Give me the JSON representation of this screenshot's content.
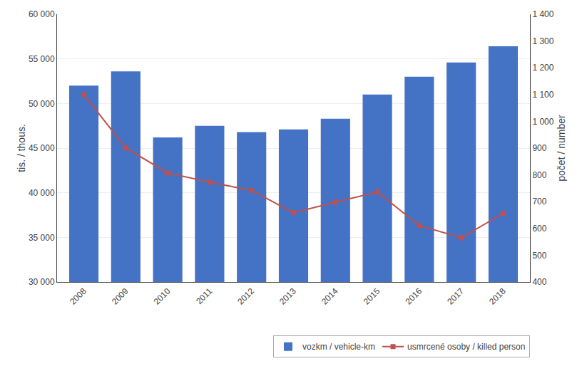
{
  "chart_data": {
    "type": "bar",
    "categories": [
      "2008",
      "2009",
      "2010",
      "2011",
      "2012",
      "2013",
      "2014",
      "2015",
      "2016",
      "2017",
      "2018"
    ],
    "series": [
      {
        "name": "vozkm / vehicle-km",
        "type": "bar",
        "color": "#4472C4",
        "values": [
          52000,
          53600,
          46200,
          47500,
          46800,
          47100,
          48300,
          51000,
          53000,
          54600,
          56400
        ]
      },
      {
        "name": "usmrcené osoby / killed person",
        "type": "line",
        "color": "#C0504D",
        "marker": "square",
        "axis": "y2",
        "values": [
          1100,
          901,
          807,
          773,
          742,
          659,
          698,
          736,
          611,
          565,
          656
        ]
      }
    ],
    "ylabel": "tis. / thous.",
    "y2label": "počet / number",
    "ylim": [
      30000,
      60000
    ],
    "yticks": [
      {
        "value": 30000,
        "label": "30 000"
      },
      {
        "value": 35000,
        "label": "35 000"
      },
      {
        "value": 40000,
        "label": "40 000"
      },
      {
        "value": 45000,
        "label": "45 000"
      },
      {
        "value": 50000,
        "label": "50 000"
      },
      {
        "value": 55000,
        "label": "55 000"
      },
      {
        "value": 60000,
        "label": "60 000"
      }
    ],
    "y2lim": [
      400,
      1400
    ],
    "y2ticks": [
      400,
      500,
      600,
      700,
      800,
      900,
      {
        "value": 1000,
        "label": "1 000"
      },
      {
        "value": 1100,
        "label": "1 100"
      },
      {
        "value": 1200,
        "label": "1 200"
      },
      {
        "value": 1300,
        "label": "1 300"
      },
      {
        "value": 1400,
        "label": "1 400"
      }
    ],
    "grid": true,
    "legend": "lower right"
  }
}
